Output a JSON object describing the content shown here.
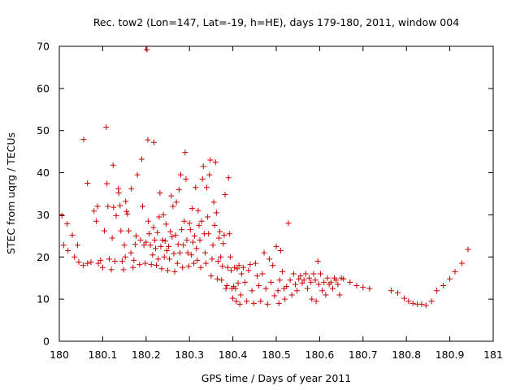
{
  "chart_data": {
    "type": "scatter",
    "title": "Rec. tow2 (Lon=147, Lat=-19, h=HE), days 179-180, 2011, window 004",
    "xlabel": "GPS time / Days of year 2011",
    "ylabel": "STEC from uqrg / TECUs",
    "xlim": [
      180,
      181
    ],
    "ylim": [
      0,
      70
    ],
    "x_ticks": [
      "180",
      "180.1",
      "180.2",
      "180.3",
      "180.4",
      "180.5",
      "180.6",
      "180.7",
      "180.8",
      "180.9",
      "181"
    ],
    "y_ticks": [
      "0",
      "10",
      "20",
      "30",
      "40",
      "50",
      "60",
      "70"
    ],
    "grid": false,
    "legend": "none",
    "marker": "+",
    "color": "#cc0000",
    "series": [
      {
        "points": [
          [
            180.006,
            29.8
          ],
          [
            180.01,
            22.8
          ],
          [
            180.018,
            27.9
          ],
          [
            180.02,
            21.5
          ],
          [
            180.03,
            25.2
          ],
          [
            180.035,
            20.0
          ],
          [
            180.042,
            22.8
          ],
          [
            180.045,
            18.8
          ],
          [
            180.055,
            18.0
          ],
          [
            180.056,
            47.9
          ],
          [
            180.065,
            37.5
          ],
          [
            180.065,
            18.5
          ],
          [
            180.073,
            18.8
          ],
          [
            180.08,
            30.9
          ],
          [
            180.085,
            28.5
          ],
          [
            180.088,
            32.0
          ],
          [
            180.09,
            18.5
          ],
          [
            180.095,
            19.2
          ],
          [
            180.1,
            17.5
          ],
          [
            180.104,
            26.2
          ],
          [
            180.108,
            50.8
          ],
          [
            180.11,
            37.4
          ],
          [
            180.112,
            32.0
          ],
          [
            180.115,
            19.5
          ],
          [
            180.12,
            17.0
          ],
          [
            180.122,
            24.5
          ],
          [
            180.124,
            41.8
          ],
          [
            180.125,
            31.8
          ],
          [
            180.128,
            19.0
          ],
          [
            180.131,
            29.8
          ],
          [
            180.136,
            36.2
          ],
          [
            180.137,
            35.2
          ],
          [
            180.14,
            32.2
          ],
          [
            180.142,
            26.2
          ],
          [
            180.145,
            19.0
          ],
          [
            180.148,
            17.0
          ],
          [
            180.15,
            22.8
          ],
          [
            180.152,
            20.0
          ],
          [
            180.153,
            33.2
          ],
          [
            180.155,
            30.8
          ],
          [
            180.157,
            30.2
          ],
          [
            180.16,
            26.2
          ],
          [
            180.165,
            21.0
          ],
          [
            180.166,
            36.2
          ],
          [
            180.17,
            17.5
          ],
          [
            180.172,
            19.2
          ],
          [
            180.175,
            23.0
          ],
          [
            180.177,
            25.0
          ],
          [
            180.18,
            39.5
          ],
          [
            180.185,
            18.2
          ],
          [
            180.187,
            24.0
          ],
          [
            180.19,
            43.2
          ],
          [
            180.192,
            32.0
          ],
          [
            180.195,
            22.8
          ],
          [
            180.198,
            18.5
          ],
          [
            180.2,
            23.5
          ],
          [
            180.202,
            69.2
          ],
          [
            180.204,
            47.8
          ],
          [
            180.205,
            28.5
          ],
          [
            180.207,
            25.5
          ],
          [
            180.21,
            22.8
          ],
          [
            180.212,
            18.2
          ],
          [
            180.215,
            20.5
          ],
          [
            180.217,
            27.0
          ],
          [
            180.218,
            47.2
          ],
          [
            180.22,
            24.0
          ],
          [
            180.222,
            22.0
          ],
          [
            180.224,
            18.0
          ],
          [
            180.226,
            25.8
          ],
          [
            180.228,
            19.5
          ],
          [
            180.23,
            29.5
          ],
          [
            180.232,
            35.2
          ],
          [
            180.234,
            22.5
          ],
          [
            180.236,
            17.2
          ],
          [
            180.238,
            24.0
          ],
          [
            180.24,
            30.0
          ],
          [
            180.242,
            20.0
          ],
          [
            180.244,
            23.8
          ],
          [
            180.246,
            27.8
          ],
          [
            180.248,
            21.5
          ],
          [
            180.25,
            16.8
          ],
          [
            180.252,
            22.5
          ],
          [
            180.254,
            19.5
          ],
          [
            180.256,
            26.0
          ],
          [
            180.258,
            34.5
          ],
          [
            180.26,
            24.8
          ],
          [
            180.262,
            32.0
          ],
          [
            180.264,
            20.8
          ],
          [
            180.266,
            16.5
          ],
          [
            180.268,
            25.2
          ],
          [
            180.27,
            33.0
          ],
          [
            180.272,
            18.5
          ],
          [
            180.274,
            23.0
          ],
          [
            180.276,
            36.0
          ],
          [
            180.278,
            21.0
          ],
          [
            180.28,
            39.5
          ],
          [
            180.282,
            26.5
          ],
          [
            180.284,
            17.5
          ],
          [
            180.286,
            22.8
          ],
          [
            180.288,
            28.5
          ],
          [
            180.29,
            44.8
          ],
          [
            180.292,
            38.5
          ],
          [
            180.294,
            24.0
          ],
          [
            180.296,
            21.0
          ],
          [
            180.298,
            17.8
          ],
          [
            180.3,
            28.0
          ],
          [
            180.302,
            26.5
          ],
          [
            180.304,
            20.5
          ],
          [
            180.306,
            31.5
          ],
          [
            180.308,
            23.5
          ],
          [
            180.31,
            18.5
          ],
          [
            180.312,
            25.0
          ],
          [
            180.314,
            36.5
          ],
          [
            180.316,
            22.0
          ],
          [
            180.318,
            19.2
          ],
          [
            180.32,
            31.0
          ],
          [
            180.322,
            27.5
          ],
          [
            180.324,
            24.0
          ],
          [
            180.326,
            17.5
          ],
          [
            180.328,
            28.5
          ],
          [
            180.33,
            38.5
          ],
          [
            180.332,
            41.5
          ],
          [
            180.334,
            25.5
          ],
          [
            180.336,
            21.0
          ],
          [
            180.338,
            18.5
          ],
          [
            180.34,
            36.5
          ],
          [
            180.342,
            29.5
          ],
          [
            180.344,
            25.5
          ],
          [
            180.346,
            39.5
          ],
          [
            180.348,
            43.0
          ],
          [
            180.35,
            15.5
          ],
          [
            180.352,
            19.5
          ],
          [
            180.354,
            22.8
          ],
          [
            180.356,
            33.0
          ],
          [
            180.358,
            27.5
          ],
          [
            180.36,
            42.5
          ],
          [
            180.362,
            30.5
          ],
          [
            180.364,
            14.8
          ],
          [
            180.366,
            19.0
          ],
          [
            180.368,
            24.5
          ],
          [
            180.37,
            26.0
          ],
          [
            180.372,
            20.0
          ],
          [
            180.374,
            14.5
          ],
          [
            180.376,
            17.8
          ],
          [
            180.378,
            23.2
          ],
          [
            180.38,
            25.2
          ],
          [
            180.382,
            34.8
          ],
          [
            180.384,
            12.5
          ],
          [
            180.386,
            13.2
          ],
          [
            180.388,
            17.5
          ],
          [
            180.39,
            38.8
          ],
          [
            180.392,
            25.5
          ],
          [
            180.394,
            20.0
          ],
          [
            180.396,
            16.8
          ],
          [
            180.398,
            12.5
          ],
          [
            180.4,
            10.2
          ],
          [
            180.402,
            13.0
          ],
          [
            180.404,
            17.5
          ],
          [
            180.406,
            12.5
          ],
          [
            180.408,
            9.5
          ],
          [
            180.41,
            17.2
          ],
          [
            180.412,
            13.8
          ],
          [
            180.414,
            18.0
          ],
          [
            180.416,
            8.8
          ],
          [
            180.418,
            11.0
          ],
          [
            180.42,
            16.0
          ],
          [
            180.424,
            17.5
          ],
          [
            180.428,
            14.0
          ],
          [
            180.432,
            9.5
          ],
          [
            180.436,
            16.8
          ],
          [
            180.44,
            18.2
          ],
          [
            180.444,
            12.0
          ],
          [
            180.448,
            9.0
          ],
          [
            180.452,
            18.5
          ],
          [
            180.456,
            15.5
          ],
          [
            180.46,
            13.2
          ],
          [
            180.464,
            9.5
          ],
          [
            180.468,
            16.0
          ],
          [
            180.472,
            21.0
          ],
          [
            180.476,
            12.5
          ],
          [
            180.48,
            8.8
          ],
          [
            180.484,
            19.5
          ],
          [
            180.488,
            14.0
          ],
          [
            180.492,
            18.0
          ],
          [
            180.496,
            10.8
          ],
          [
            180.5,
            22.5
          ],
          [
            180.504,
            12.0
          ],
          [
            180.506,
            9.0
          ],
          [
            180.508,
            14.5
          ],
          [
            180.51,
            21.5
          ],
          [
            180.514,
            16.5
          ],
          [
            180.518,
            12.5
          ],
          [
            180.52,
            10.0
          ],
          [
            180.524,
            13.0
          ],
          [
            180.528,
            28.0
          ],
          [
            180.532,
            14.5
          ],
          [
            180.536,
            11.0
          ],
          [
            180.54,
            16.0
          ],
          [
            180.544,
            13.5
          ],
          [
            180.548,
            12.0
          ],
          [
            180.552,
            14.8
          ],
          [
            180.556,
            15.5
          ],
          [
            180.56,
            13.8
          ],
          [
            180.564,
            14.5
          ],
          [
            180.568,
            16.0
          ],
          [
            180.572,
            12.5
          ],
          [
            180.576,
            15.0
          ],
          [
            180.58,
            14.0
          ],
          [
            180.582,
            10.0
          ],
          [
            180.586,
            16.0
          ],
          [
            180.59,
            14.5
          ],
          [
            180.592,
            9.5
          ],
          [
            180.596,
            19.0
          ],
          [
            180.598,
            13.5
          ],
          [
            180.602,
            16.0
          ],
          [
            180.606,
            12.0
          ],
          [
            180.61,
            14.0
          ],
          [
            180.614,
            11.0
          ],
          [
            180.618,
            15.0
          ],
          [
            180.622,
            13.5
          ],
          [
            180.626,
            14.0
          ],
          [
            180.63,
            12.5
          ],
          [
            180.634,
            15.0
          ],
          [
            180.638,
            14.5
          ],
          [
            180.642,
            13.5
          ],
          [
            180.646,
            11.0
          ],
          [
            180.65,
            15.0
          ],
          [
            180.655,
            14.8
          ],
          [
            180.67,
            14.0
          ],
          [
            180.685,
            13.2
          ],
          [
            180.7,
            12.8
          ],
          [
            180.715,
            12.5
          ],
          [
            180.765,
            12.0
          ],
          [
            180.78,
            11.5
          ],
          [
            180.795,
            10.2
          ],
          [
            180.805,
            9.5
          ],
          [
            180.815,
            9.0
          ],
          [
            180.825,
            8.8
          ],
          [
            180.835,
            8.8
          ],
          [
            180.845,
            8.5
          ],
          [
            180.858,
            9.5
          ],
          [
            180.87,
            12.0
          ],
          [
            180.885,
            13.2
          ],
          [
            180.9,
            14.8
          ],
          [
            180.912,
            16.5
          ],
          [
            180.928,
            18.5
          ],
          [
            180.942,
            21.8
          ]
        ]
      }
    ]
  }
}
